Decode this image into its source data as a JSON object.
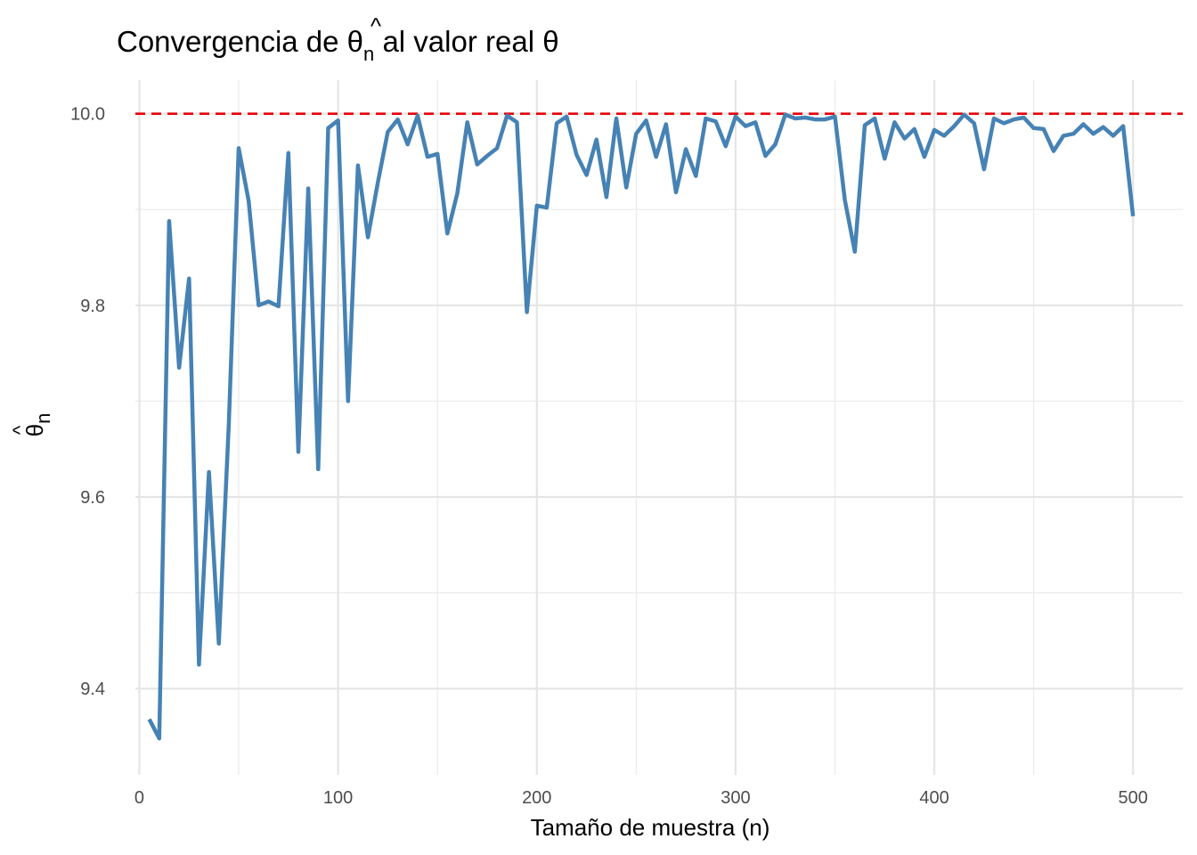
{
  "chart_data": {
    "type": "line",
    "title": {
      "prefix": "Convergencia de ",
      "symbol": "θ",
      "hat": "^",
      "subscript": "n",
      "suffix": " al valor real θ"
    },
    "xlabel": "Tamaño de muestra (n)",
    "ylabel": {
      "symbol": "θ",
      "hat": "^",
      "subscript": "n"
    },
    "xlim": [
      -2,
      525
    ],
    "ylim": [
      9.31,
      10.035
    ],
    "xticks": [
      0,
      100,
      200,
      300,
      400,
      500
    ],
    "xtick_labels": [
      "0",
      "100",
      "200",
      "300",
      "400",
      "500"
    ],
    "yticks": [
      9.4,
      9.6,
      9.8,
      10.0
    ],
    "ytick_labels": [
      "9.4",
      "9.6",
      "9.8",
      "10.0"
    ],
    "grid": true,
    "legend": "none",
    "reference_line": {
      "y": 10.0,
      "style": "dashed",
      "color": "#e8000b"
    },
    "series": [
      {
        "color": "#4682b4",
        "x": [
          5,
          10,
          15,
          20,
          25,
          30,
          35,
          40,
          45,
          50,
          55,
          60,
          65,
          70,
          75,
          80,
          85,
          90,
          95,
          100,
          105,
          110,
          115,
          120,
          125,
          130,
          135,
          140,
          145,
          150,
          155,
          160,
          165,
          170,
          175,
          180,
          185,
          190,
          195,
          200,
          205,
          210,
          215,
          220,
          225,
          230,
          235,
          240,
          245,
          250,
          255,
          260,
          265,
          270,
          275,
          280,
          285,
          290,
          295,
          300,
          305,
          310,
          315,
          320,
          325,
          330,
          335,
          340,
          345,
          350,
          355,
          360,
          365,
          370,
          375,
          380,
          385,
          390,
          395,
          400,
          405,
          410,
          415,
          420,
          425,
          430,
          435,
          440,
          445,
          450,
          455,
          460,
          465,
          470,
          475,
          480,
          485,
          490,
          495,
          500
        ],
        "y": [
          9.368,
          9.348,
          9.888,
          9.735,
          9.828,
          9.425,
          9.626,
          9.447,
          9.676,
          9.964,
          9.909,
          9.8,
          9.804,
          9.799,
          9.959,
          9.647,
          9.922,
          9.629,
          9.985,
          9.993,
          9.7,
          9.946,
          9.871,
          9.928,
          9.981,
          9.994,
          9.968,
          9.998,
          9.955,
          9.958,
          9.875,
          9.917,
          9.991,
          9.947,
          9.956,
          9.964,
          9.998,
          9.991,
          9.793,
          9.904,
          9.902,
          9.99,
          9.997,
          9.957,
          9.936,
          9.973,
          9.913,
          9.995,
          9.923,
          9.979,
          9.993,
          9.955,
          9.989,
          9.918,
          9.963,
          9.935,
          9.995,
          9.992,
          9.966,
          9.997,
          9.987,
          9.991,
          9.956,
          9.968,
          9.999,
          9.995,
          9.996,
          9.994,
          9.994,
          9.997,
          9.91,
          9.856,
          9.988,
          9.995,
          9.953,
          9.991,
          9.974,
          9.984,
          9.955,
          9.983,
          9.977,
          9.987,
          9.999,
          9.99,
          9.942,
          9.995,
          9.99,
          9.994,
          9.996,
          9.985,
          9.984,
          9.961,
          9.977,
          9.979,
          9.989,
          9.979,
          9.986,
          9.977,
          9.987,
          9.893
        ]
      }
    ]
  }
}
